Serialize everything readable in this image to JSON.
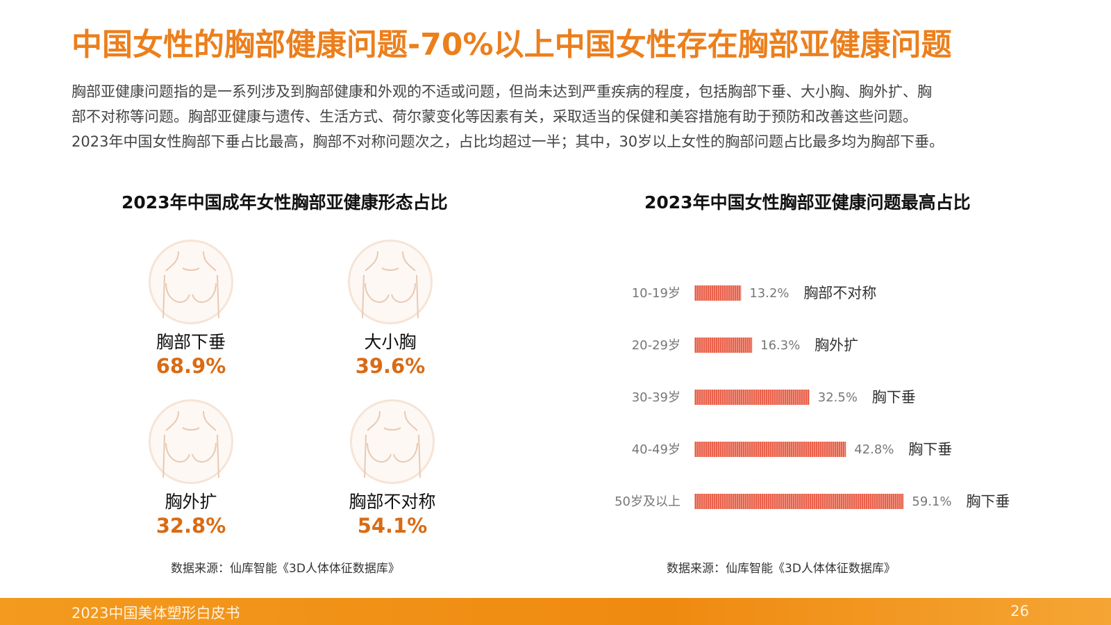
{
  "header": {
    "title": "中国女性的胸部健康问题-70%以上中国女性存在胸部亚健康问题",
    "description_lines": [
      "胸部亚健康问题指的是一系列涉及到胸部健康和外观的不适或问题，但尚未达到严重疾病的程度，包括胸部下垂、大小胸、胸外扩、胸",
      "部不对称等问题。胸部亚健康与遗传、生活方式、荷尔蒙变化等因素有关，采取适当的保健和美容措施有助于预防和改善这些问题。",
      "2023年中国女性胸部下垂占比最高，胸部不对称问题次之，占比均超过一半；其中，30岁以上女性的胸部问题占比最多均为胸部下垂。"
    ]
  },
  "left_panel": {
    "title": "2023年中国成年女性胸部亚健康形态占比",
    "items": [
      {
        "name": "胸部下垂",
        "value": "68.9%"
      },
      {
        "name": "大小胸",
        "value": "39.6%"
      },
      {
        "name": "胸外扩",
        "value": "32.8%"
      },
      {
        "name": "胸部不对称",
        "value": "54.1%"
      }
    ],
    "source": "数据来源：仙库智能《3D人体体征数据库》",
    "icon": "torso-icon"
  },
  "right_panel": {
    "title": "2023年中国女性胸部亚健康问题最高占比",
    "source": "数据来源：仙库智能《3D人体体征数据库》"
  },
  "chart_data": {
    "type": "bar",
    "orientation": "horizontal",
    "title": "2023年中国女性胸部亚健康问题最高占比",
    "categories": [
      "10-19岁",
      "20-29岁",
      "30-39岁",
      "40-49岁",
      "50岁及以上"
    ],
    "values": [
      13.2,
      16.3,
      32.5,
      42.8,
      59.1
    ],
    "value_labels": [
      "13.2%",
      "16.3%",
      "32.5%",
      "42.8%",
      "59.1%"
    ],
    "issue_labels": [
      "胸部不对称",
      "胸外扩",
      "胸下垂",
      "胸下垂",
      "胸下垂"
    ],
    "unit": "%",
    "bar_color": "#e8604a",
    "grid": false
  },
  "footer": {
    "left": "2023中国美体塑形白皮书",
    "page": "26"
  },
  "colors": {
    "title": "#ec7f1c",
    "percent": "#d96b14",
    "footer": "#f39a1f"
  }
}
